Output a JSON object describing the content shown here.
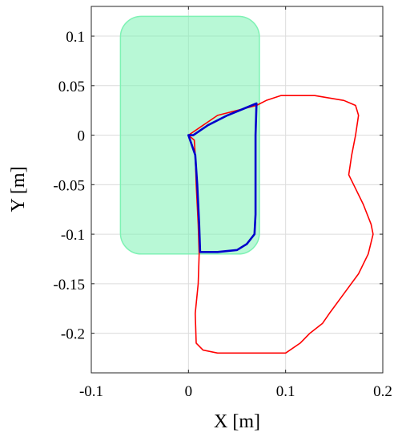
{
  "chart_data": {
    "type": "line",
    "title": "",
    "xlabel": "X [m]",
    "ylabel": "Y [m]",
    "xlim": [
      -0.1,
      0.2
    ],
    "ylim": [
      -0.24,
      0.13
    ],
    "xticks": [
      -0.1,
      0,
      0.1,
      0.2
    ],
    "xtick_labels": [
      "-0.1",
      "0",
      "0.1",
      "0.2"
    ],
    "yticks": [
      0.1,
      0.05,
      0,
      -0.05,
      -0.1,
      -0.15,
      -0.2
    ],
    "ytick_labels": [
      "0.1",
      "0.05",
      "0",
      "-0.05",
      "-0.1",
      "-0.15",
      "-0.2"
    ],
    "grid": true,
    "legend": "none",
    "region": {
      "color": "#7ef2b4",
      "x_range": [
        -0.07,
        0.073
      ],
      "y_range": [
        -0.12,
        0.12
      ]
    },
    "series": [
      {
        "color": "#ff0000",
        "points": [
          [
            0.0,
            0.0
          ],
          [
            0.03,
            0.02
          ],
          [
            0.07,
            0.03
          ],
          [
            0.08,
            0.035
          ],
          [
            0.095,
            0.04
          ],
          [
            0.11,
            0.04
          ],
          [
            0.13,
            0.04
          ],
          [
            0.16,
            0.035
          ],
          [
            0.172,
            0.03
          ],
          [
            0.175,
            0.02
          ],
          [
            0.172,
            0.0
          ],
          [
            0.168,
            -0.02
          ],
          [
            0.165,
            -0.04
          ],
          [
            0.17,
            -0.05
          ],
          [
            0.18,
            -0.07
          ],
          [
            0.188,
            -0.09
          ],
          [
            0.19,
            -0.1
          ],
          [
            0.185,
            -0.12
          ],
          [
            0.175,
            -0.14
          ],
          [
            0.16,
            -0.16
          ],
          [
            0.145,
            -0.18
          ],
          [
            0.138,
            -0.19
          ],
          [
            0.125,
            -0.2
          ],
          [
            0.115,
            -0.21
          ],
          [
            0.1,
            -0.22
          ],
          [
            0.08,
            -0.22
          ],
          [
            0.06,
            -0.22
          ],
          [
            0.03,
            -0.22
          ],
          [
            0.015,
            -0.217
          ],
          [
            0.008,
            -0.21
          ],
          [
            0.007,
            -0.18
          ],
          [
            0.01,
            -0.15
          ],
          [
            0.011,
            -0.12
          ],
          [
            0.01,
            -0.09
          ],
          [
            0.008,
            -0.05
          ],
          [
            0.007,
            -0.02
          ],
          [
            0.006,
            -0.005
          ],
          [
            0.0,
            0.0
          ]
        ]
      },
      {
        "color": "#0000cc",
        "points": [
          [
            0.0,
            0.0
          ],
          [
            0.005,
            0.0
          ],
          [
            0.02,
            0.01
          ],
          [
            0.04,
            0.02
          ],
          [
            0.06,
            0.028
          ],
          [
            0.07,
            0.032
          ],
          [
            0.069,
            0.0
          ],
          [
            0.069,
            -0.04
          ],
          [
            0.069,
            -0.08
          ],
          [
            0.068,
            -0.1
          ],
          [
            0.06,
            -0.11
          ],
          [
            0.05,
            -0.116
          ],
          [
            0.03,
            -0.118
          ],
          [
            0.012,
            -0.118
          ],
          [
            0.011,
            -0.09
          ],
          [
            0.009,
            -0.05
          ],
          [
            0.007,
            -0.02
          ],
          [
            0.0,
            0.0
          ]
        ]
      }
    ]
  }
}
